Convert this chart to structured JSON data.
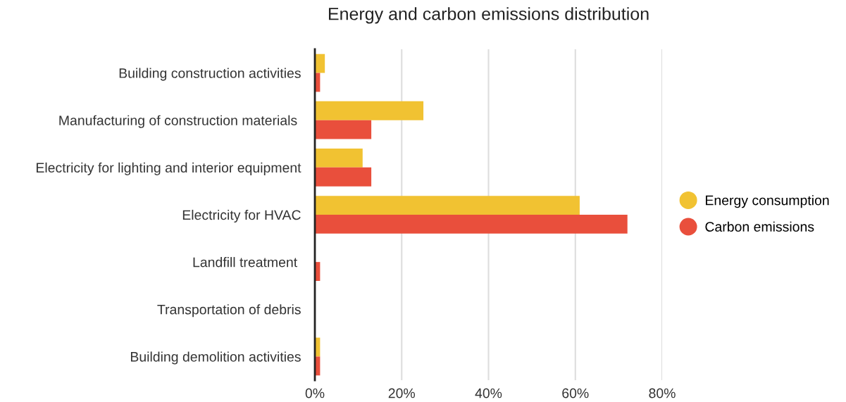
{
  "chart_data": {
    "type": "bar",
    "orientation": "horizontal",
    "title": "Energy and carbon emissions distribution",
    "categories": [
      "Building construction activities",
      "Manufacturing of construction materials ",
      "Electricity for lighting and interior equipment",
      "Electricity for HVAC",
      "Landfill treatment ",
      "Transportation of debris",
      "Building demolition activities"
    ],
    "series": [
      {
        "name": "Energy consumption",
        "color": "#f1c232",
        "values": [
          2.3,
          25,
          11,
          61,
          0,
          0,
          1.2
        ]
      },
      {
        "name": "Carbon emissions",
        "color": "#e94f3c",
        "values": [
          1.2,
          13,
          13,
          72,
          1.2,
          0,
          1.2
        ]
      }
    ],
    "xlim": [
      0,
      80
    ],
    "xticks": [
      {
        "value": 0,
        "label": "0%"
      },
      {
        "value": 20,
        "label": "20%"
      },
      {
        "value": 40,
        "label": "40%"
      },
      {
        "value": 60,
        "label": "60%"
      },
      {
        "value": 80,
        "label": "80%"
      }
    ],
    "grid": "x",
    "legend": "right"
  }
}
